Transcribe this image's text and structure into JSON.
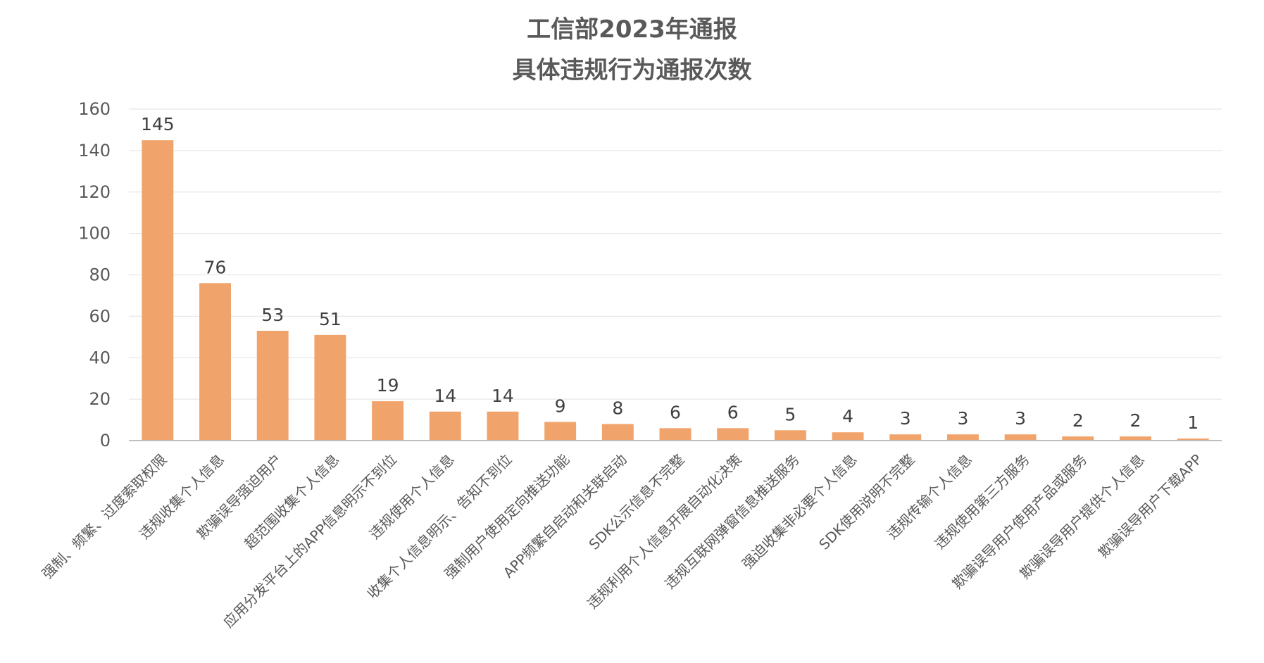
{
  "chart_data": {
    "type": "bar",
    "title": "工信部2023年通报",
    "subtitle": "具体违规行为通报次数",
    "categories": [
      "强制、频繁、过度索取权限",
      "违规收集个人信息",
      "欺骗误导强迫用户",
      "超范围收集个人信息",
      "应用分发平台上的APP信息明示不到位",
      "违规使用个人信息",
      "收集个人信息明示、告知不到位",
      "强制用户使用定向推送功能",
      "APP频繁自启动和关联启动",
      "SDK公示信息不完整",
      "违规利用个人信息开展自动化决策",
      "违规互联网弹窗信息推送服务",
      "强迫收集非必要个人信息",
      "SDK使用说明不完整",
      "违规传输个人信息",
      "违规使用第三方服务",
      "欺骗误导用户使用产品或服务",
      "欺骗误导用户提供个人信息",
      "欺骗误导用户下载APP"
    ],
    "values": [
      145,
      76,
      53,
      51,
      19,
      14,
      14,
      9,
      8,
      6,
      6,
      5,
      4,
      3,
      3,
      3,
      2,
      2,
      1
    ],
    "ylim": [
      0,
      160
    ],
    "yticks": [
      0,
      20,
      40,
      60,
      80,
      100,
      120,
      140,
      160
    ],
    "xlabel": "",
    "ylabel": "",
    "grid": true,
    "data_labels": true,
    "bar_color": "#F0A46C",
    "grid_color": "#E8E8E8",
    "axis_color": "#BFBFBF"
  }
}
